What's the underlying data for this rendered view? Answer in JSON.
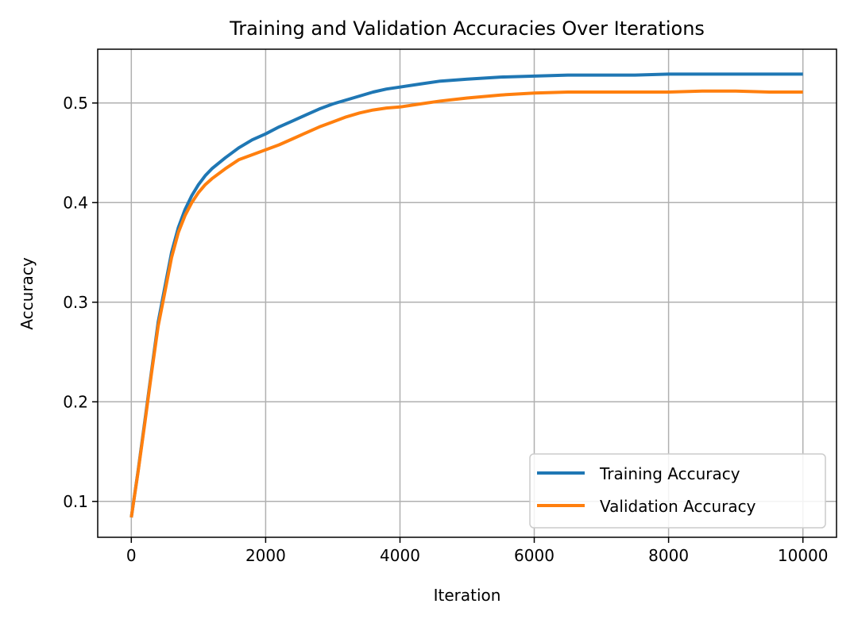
{
  "chart_data": {
    "type": "line",
    "title": "Training and Validation Accuracies Over Iterations",
    "xlabel": "Iteration",
    "ylabel": "Accuracy",
    "xlim": [
      -500,
      10500
    ],
    "ylim": [
      0.064,
      0.554
    ],
    "xticks": [
      0,
      2000,
      4000,
      6000,
      8000,
      10000
    ],
    "yticks": [
      0.1,
      0.2,
      0.3,
      0.4,
      0.5
    ],
    "xtick_labels": [
      "0",
      "2000",
      "4000",
      "6000",
      "8000",
      "10000"
    ],
    "ytick_labels": [
      "0.1",
      "0.2",
      "0.3",
      "0.4",
      "0.5"
    ],
    "grid": true,
    "legend_position": "lower-right",
    "series": [
      {
        "name": "Training Accuracy",
        "color": "#1f77b4",
        "x": [
          0,
          100,
          200,
          300,
          400,
          500,
          600,
          700,
          800,
          900,
          1000,
          1100,
          1200,
          1400,
          1600,
          1800,
          2000,
          2200,
          2400,
          2600,
          2800,
          3000,
          3200,
          3400,
          3600,
          3800,
          4000,
          4300,
          4600,
          5000,
          5500,
          6000,
          6500,
          7000,
          7500,
          8000,
          8500,
          9000,
          9500,
          10000
        ],
        "y": [
          0.084,
          0.13,
          0.18,
          0.23,
          0.28,
          0.315,
          0.35,
          0.375,
          0.393,
          0.407,
          0.418,
          0.427,
          0.434,
          0.445,
          0.455,
          0.463,
          0.469,
          0.476,
          0.482,
          0.488,
          0.494,
          0.499,
          0.503,
          0.507,
          0.511,
          0.514,
          0.516,
          0.519,
          0.522,
          0.524,
          0.526,
          0.527,
          0.528,
          0.528,
          0.528,
          0.529,
          0.529,
          0.529,
          0.529,
          0.529
        ]
      },
      {
        "name": "Validation Accuracy",
        "color": "#ff7f0e",
        "x": [
          0,
          100,
          200,
          300,
          400,
          500,
          600,
          700,
          800,
          900,
          1000,
          1100,
          1200,
          1400,
          1600,
          1800,
          2000,
          2200,
          2400,
          2600,
          2800,
          3000,
          3200,
          3400,
          3600,
          3800,
          4000,
          4300,
          4600,
          5000,
          5500,
          6000,
          6500,
          7000,
          7500,
          8000,
          8500,
          9000,
          9500,
          10000
        ],
        "y": [
          0.084,
          0.129,
          0.178,
          0.228,
          0.276,
          0.31,
          0.345,
          0.37,
          0.387,
          0.4,
          0.41,
          0.418,
          0.424,
          0.434,
          0.443,
          0.448,
          0.453,
          0.458,
          0.464,
          0.47,
          0.476,
          0.481,
          0.486,
          0.49,
          0.493,
          0.495,
          0.496,
          0.499,
          0.502,
          0.505,
          0.508,
          0.51,
          0.511,
          0.511,
          0.511,
          0.511,
          0.512,
          0.512,
          0.511,
          0.511
        ]
      }
    ]
  }
}
